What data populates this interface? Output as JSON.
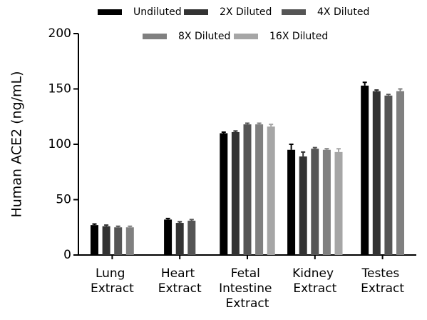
{
  "chart_data": {
    "type": "bar",
    "y_label": "Human ACE2 (ng/mL)",
    "categories": [
      "Lung Extract",
      "Heart Extract",
      "Fetal Intestine Extract",
      "Kidney Extract",
      "Testes Extract"
    ],
    "series": [
      {
        "name": "Undiluted",
        "color": "#000000",
        "values": [
          27,
          32,
          110,
          95,
          153
        ],
        "errors": [
          1,
          1,
          1,
          5,
          3
        ]
      },
      {
        "name": "2X Diluted",
        "color": "#333333",
        "values": [
          26,
          29,
          111,
          89,
          148
        ],
        "errors": [
          1,
          1,
          1,
          4,
          1
        ]
      },
      {
        "name": "4X Diluted",
        "color": "#555555",
        "values": [
          25,
          31,
          118,
          96,
          144
        ],
        "errors": [
          1,
          1,
          1,
          1,
          1
        ]
      },
      {
        "name": "8X Diluted",
        "color": "#808080",
        "values": [
          25,
          null,
          118,
          95,
          148
        ],
        "errors": [
          1,
          null,
          1,
          1,
          2
        ]
      },
      {
        "name": "16X Diluted",
        "color": "#a6a6a6",
        "values": [
          null,
          null,
          116,
          93,
          null
        ],
        "errors": [
          null,
          null,
          2,
          3,
          null
        ]
      }
    ],
    "ylim": [
      0,
      200
    ],
    "yticks": [
      0,
      50,
      100,
      150,
      200
    ]
  }
}
